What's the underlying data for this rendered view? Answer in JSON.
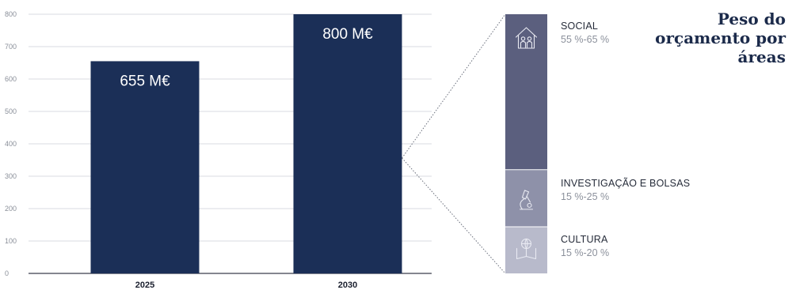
{
  "chart_data": [
    {
      "type": "bar",
      "categories": [
        "2025",
        "2030"
      ],
      "values": [
        655,
        800
      ],
      "value_labels": [
        "655 M€",
        "800 M€"
      ],
      "ylim": [
        0,
        800
      ],
      "yticks": [
        0,
        100,
        200,
        300,
        400,
        500,
        600,
        700,
        800
      ],
      "grid": true,
      "bar_color": "#1b2f57"
    },
    {
      "type": "bar",
      "stacked": true,
      "title_lines": [
        "Peso do",
        "orçamento por",
        "áreas"
      ],
      "segments": [
        {
          "name": "SOCIAL",
          "range": "55 %-65 %",
          "share": 0.6,
          "color": "#5b5f7e",
          "icon": "family-house-icon"
        },
        {
          "name": "INVESTIGAÇÃO E BOLSAS",
          "range": "15 %-25 %",
          "share": 0.22,
          "color": "#8e91a9",
          "icon": "microscope-icon"
        },
        {
          "name": "CULTURA",
          "range": "15 %-20 %",
          "share": 0.18,
          "color": "#b8bacb",
          "icon": "book-globe-icon"
        }
      ]
    }
  ]
}
